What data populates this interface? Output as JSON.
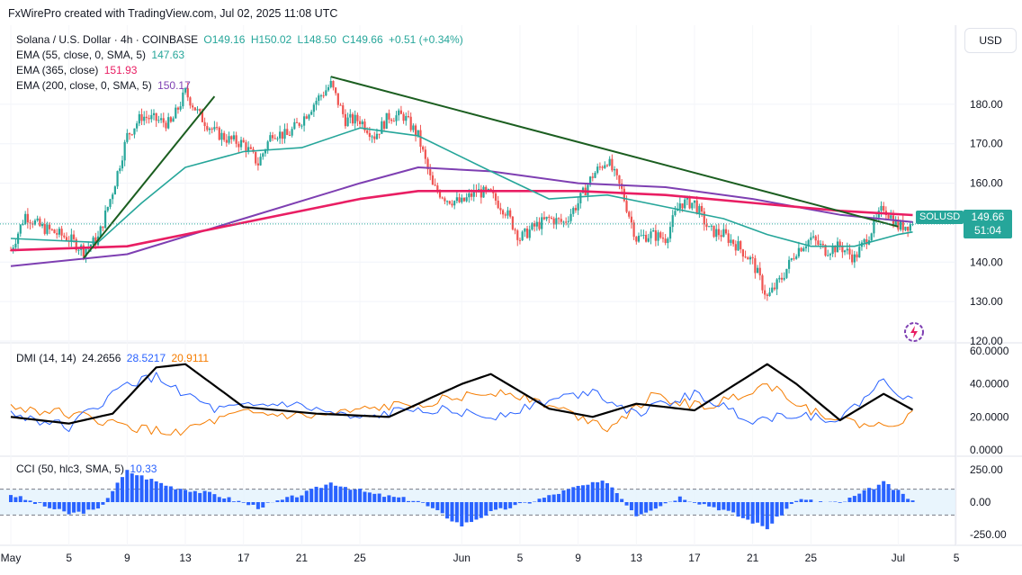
{
  "header": "FxWirePro created with TradingView.com, Jul 02, 2025 11:08 UTC",
  "currency_button": "USD",
  "symbol_tag": "SOLUSD",
  "price_box": {
    "price": "149.66",
    "countdown": "51:04"
  },
  "colors": {
    "up": "#26a69a",
    "down": "#ef5350",
    "ema55": "#26a69a",
    "ema365": "#e91e63",
    "ema200": "#7e3fb2",
    "trendline": "#1b5e20",
    "di_plus": "#2962ff",
    "di_minus": "#f57c00",
    "adx": "#000000",
    "cci": "#2962ff"
  },
  "legend": {
    "main": {
      "symbol": "Solana / U.S. Dollar · 4h · COINBASE",
      "o": "O149.16",
      "h": "H150.02",
      "l": "L148.50",
      "c": "C149.66",
      "chg": "+0.51 (+0.34%)"
    },
    "ema55": {
      "label": "EMA (55, close, 0, SMA, 5)",
      "value": "147.63"
    },
    "ema365": {
      "label": "EMA (365, close)",
      "value": "151.93"
    },
    "ema200": {
      "label": "EMA (200, close, 0, SMA, 5)",
      "value": "150.17"
    },
    "dmi": {
      "label": "DMI (14, 14)",
      "adx": "24.2656",
      "di_plus": "28.5217",
      "di_minus": "20.9111"
    },
    "cci": {
      "label": "CCI (50, hlc3, SMA, 5)",
      "value": "10.33"
    }
  },
  "chart_data": [
    {
      "type": "candlestick",
      "title": "Solana / U.S. Dollar · 4h · COINBASE",
      "ylim": [
        120,
        190
      ],
      "y_ticks": [
        "180.00",
        "170.00",
        "160.00",
        "150.00",
        "140.00",
        "130.00",
        "120.00"
      ],
      "x_ticks": [
        "May",
        "5",
        "9",
        "13",
        "17",
        "21",
        "25",
        "Jun",
        "5",
        "9",
        "13",
        "17",
        "21",
        "25",
        "Jul",
        "5"
      ],
      "price_path": [
        [
          "May 1",
          143
        ],
        [
          "May 2",
          152
        ],
        [
          "May 3",
          149
        ],
        [
          "May 5",
          146
        ],
        [
          "May 6",
          143
        ],
        [
          "May 7",
          146
        ],
        [
          "May 8",
          158
        ],
        [
          "May 9",
          172
        ],
        [
          "May 10",
          177
        ],
        [
          "May 12",
          175
        ],
        [
          "May 13",
          183
        ],
        [
          "May 14",
          177
        ],
        [
          "May 15",
          173
        ],
        [
          "May 16",
          171
        ],
        [
          "May 17",
          170
        ],
        [
          "May 18",
          165
        ],
        [
          "May 19",
          173
        ],
        [
          "May 20",
          172
        ],
        [
          "May 21",
          176
        ],
        [
          "May 22",
          181
        ],
        [
          "May 23",
          185
        ],
        [
          "May 24",
          176
        ],
        [
          "May 25",
          176
        ],
        [
          "May 26",
          172
        ],
        [
          "May 27",
          177
        ],
        [
          "May 28",
          177
        ],
        [
          "May 29",
          172
        ],
        [
          "May 30",
          159
        ],
        [
          "May 31",
          156
        ],
        [
          "Jun 1",
          155
        ],
        [
          "Jun 2",
          158
        ],
        [
          "Jun 3",
          157
        ],
        [
          "Jun 4",
          153
        ],
        [
          "Jun 5",
          146
        ],
        [
          "Jun 6",
          149
        ],
        [
          "Jun 7",
          151
        ],
        [
          "Jun 8",
          150
        ],
        [
          "Jun 9",
          155
        ],
        [
          "Jun 10",
          162
        ],
        [
          "Jun 11",
          166
        ],
        [
          "Jun 12",
          158
        ],
        [
          "Jun 13",
          146
        ],
        [
          "Jun 14",
          147
        ],
        [
          "Jun 15",
          146
        ],
        [
          "Jun 16",
          155
        ],
        [
          "Jun 17",
          155
        ],
        [
          "Jun 18",
          148
        ],
        [
          "Jun 19",
          147
        ],
        [
          "Jun 20",
          144
        ],
        [
          "Jun 21",
          140
        ],
        [
          "Jun 22",
          131
        ],
        [
          "Jun 23",
          136
        ],
        [
          "Jun 24",
          143
        ],
        [
          "Jun 25",
          146
        ],
        [
          "Jun 26",
          143
        ],
        [
          "Jun 27",
          144
        ],
        [
          "Jun 28",
          141
        ],
        [
          "Jun 29",
          147
        ],
        [
          "Jun 30",
          154
        ],
        [
          "Jul 1",
          149
        ],
        [
          "Jul 2",
          149.66
        ]
      ],
      "ema55": [
        [
          "May 1",
          146
        ],
        [
          "May 7",
          145
        ],
        [
          "May 10",
          155
        ],
        [
          "May 13",
          164
        ],
        [
          "May 17",
          168
        ],
        [
          "May 21",
          169
        ],
        [
          "May 25",
          174
        ],
        [
          "May 29",
          172
        ],
        [
          "Jun 3",
          163
        ],
        [
          "Jun 7",
          156
        ],
        [
          "Jun 11",
          157
        ],
        [
          "Jun 15",
          154
        ],
        [
          "Jun 19",
          151
        ],
        [
          "Jun 22",
          147
        ],
        [
          "Jun 25",
          144
        ],
        [
          "Jun 28",
          144
        ],
        [
          "Jul 1",
          147
        ],
        [
          "Jul 2",
          147.63
        ]
      ],
      "ema365": [
        [
          "May 1",
          143
        ],
        [
          "May 9",
          144
        ],
        [
          "May 17",
          150
        ],
        [
          "May 25",
          156
        ],
        [
          "May 29",
          158
        ],
        [
          "Jun 3",
          158
        ],
        [
          "Jun 9",
          158
        ],
        [
          "Jun 15",
          157
        ],
        [
          "Jun 21",
          155
        ],
        [
          "Jun 27",
          153
        ],
        [
          "Jul 2",
          151.93
        ]
      ],
      "ema200": [
        [
          "May 1",
          139
        ],
        [
          "May 9",
          142
        ],
        [
          "May 17",
          151
        ],
        [
          "May 25",
          160
        ],
        [
          "May 29",
          164
        ],
        [
          "Jun 3",
          163
        ],
        [
          "Jun 9",
          160
        ],
        [
          "Jun 15",
          159
        ],
        [
          "Jun 21",
          156
        ],
        [
          "Jun 27",
          152
        ],
        [
          "Jul 2",
          150.17
        ]
      ],
      "trendlines": [
        {
          "from": [
            "May 6",
            141
          ],
          "to": [
            "May 15",
            182
          ]
        },
        {
          "from": [
            "May 23",
            187
          ],
          "to": [
            "Jul 1",
            149
          ]
        }
      ]
    },
    {
      "type": "line",
      "title": "DMI (14, 14)",
      "ylim": [
        0,
        60
      ],
      "y_ticks": [
        "60.0000",
        "40.0000",
        "20.0000",
        "0.0000"
      ],
      "series": [
        {
          "name": "ADX",
          "values": [
            [
              "May 1",
              20
            ],
            [
              "May 5",
              16
            ],
            [
              "May 8",
              22
            ],
            [
              "May 11",
              50
            ],
            [
              "May 13",
              52
            ],
            [
              "May 17",
              26
            ],
            [
              "May 22",
              22
            ],
            [
              "May 27",
              20
            ],
            [
              "Jun 1",
              40
            ],
            [
              "Jun 3",
              46
            ],
            [
              "Jun 7",
              25
            ],
            [
              "Jun 10",
              20
            ],
            [
              "Jun 13",
              28
            ],
            [
              "Jun 17",
              24
            ],
            [
              "Jun 22",
              52
            ],
            [
              "Jun 24",
              40
            ],
            [
              "Jun 27",
              18
            ],
            [
              "Jun 30",
              34
            ],
            [
              "Jul 2",
              24.2656
            ]
          ]
        },
        {
          "name": "DI+",
          "values": [
            [
              "May 1",
              22
            ],
            [
              "May 5",
              14
            ],
            [
              "May 9",
              40
            ],
            [
              "May 11",
              44
            ],
            [
              "May 15",
              24
            ],
            [
              "May 20",
              28
            ],
            [
              "May 25",
              18
            ],
            [
              "May 29",
              26
            ],
            [
              "Jun 3",
              20
            ],
            [
              "Jun 7",
              30
            ],
            [
              "Jun 10",
              36
            ],
            [
              "Jun 13",
              22
            ],
            [
              "Jun 17",
              34
            ],
            [
              "Jun 21",
              18
            ],
            [
              "Jun 24",
              22
            ],
            [
              "Jun 27",
              18
            ],
            [
              "Jun 30",
              42
            ],
            [
              "Jul 2",
              28.5217
            ]
          ]
        },
        {
          "name": "DI-",
          "values": [
            [
              "May 1",
              26
            ],
            [
              "May 5",
              22
            ],
            [
              "May 9",
              14
            ],
            [
              "May 12",
              10
            ],
            [
              "May 17",
              22
            ],
            [
              "May 22",
              20
            ],
            [
              "May 27",
              26
            ],
            [
              "Jun 1",
              32
            ],
            [
              "Jun 4",
              36
            ],
            [
              "Jun 8",
              24
            ],
            [
              "Jun 11",
              14
            ],
            [
              "Jun 14",
              32
            ],
            [
              "Jun 18",
              26
            ],
            [
              "Jun 22",
              40
            ],
            [
              "Jun 25",
              24
            ],
            [
              "Jun 28",
              16
            ],
            [
              "Jun 30",
              14
            ],
            [
              "Jul 2",
              20.9111
            ]
          ]
        }
      ]
    },
    {
      "type": "bar",
      "title": "CCI (50, hlc3, SMA, 5)",
      "ylim": [
        -250,
        250
      ],
      "y_ticks": [
        "250.00",
        "0.00",
        "-250.00"
      ],
      "series": [
        {
          "name": "CCI",
          "values": [
            [
              "May 1",
              60
            ],
            [
              "May 3",
              -20
            ],
            [
              "May 5",
              -90
            ],
            [
              "May 7",
              -60
            ],
            [
              "May 9",
              240
            ],
            [
              "May 12",
              120
            ],
            [
              "May 15",
              60
            ],
            [
              "May 18",
              -40
            ],
            [
              "May 21",
              60
            ],
            [
              "May 23",
              150
            ],
            [
              "May 26",
              60
            ],
            [
              "May 29",
              10
            ],
            [
              "Jun 1",
              -180
            ],
            [
              "Jun 3",
              -80
            ],
            [
              "Jun 6",
              10
            ],
            [
              "Jun 9",
              120
            ],
            [
              "Jun 11",
              160
            ],
            [
              "Jun 13",
              -100
            ],
            [
              "Jun 16",
              40
            ],
            [
              "Jun 19",
              -60
            ],
            [
              "Jun 22",
              -200
            ],
            [
              "Jun 24",
              20
            ],
            [
              "Jun 27",
              -10
            ],
            [
              "Jun 30",
              150
            ],
            [
              "Jul 2",
              10.33
            ]
          ]
        }
      ]
    }
  ]
}
